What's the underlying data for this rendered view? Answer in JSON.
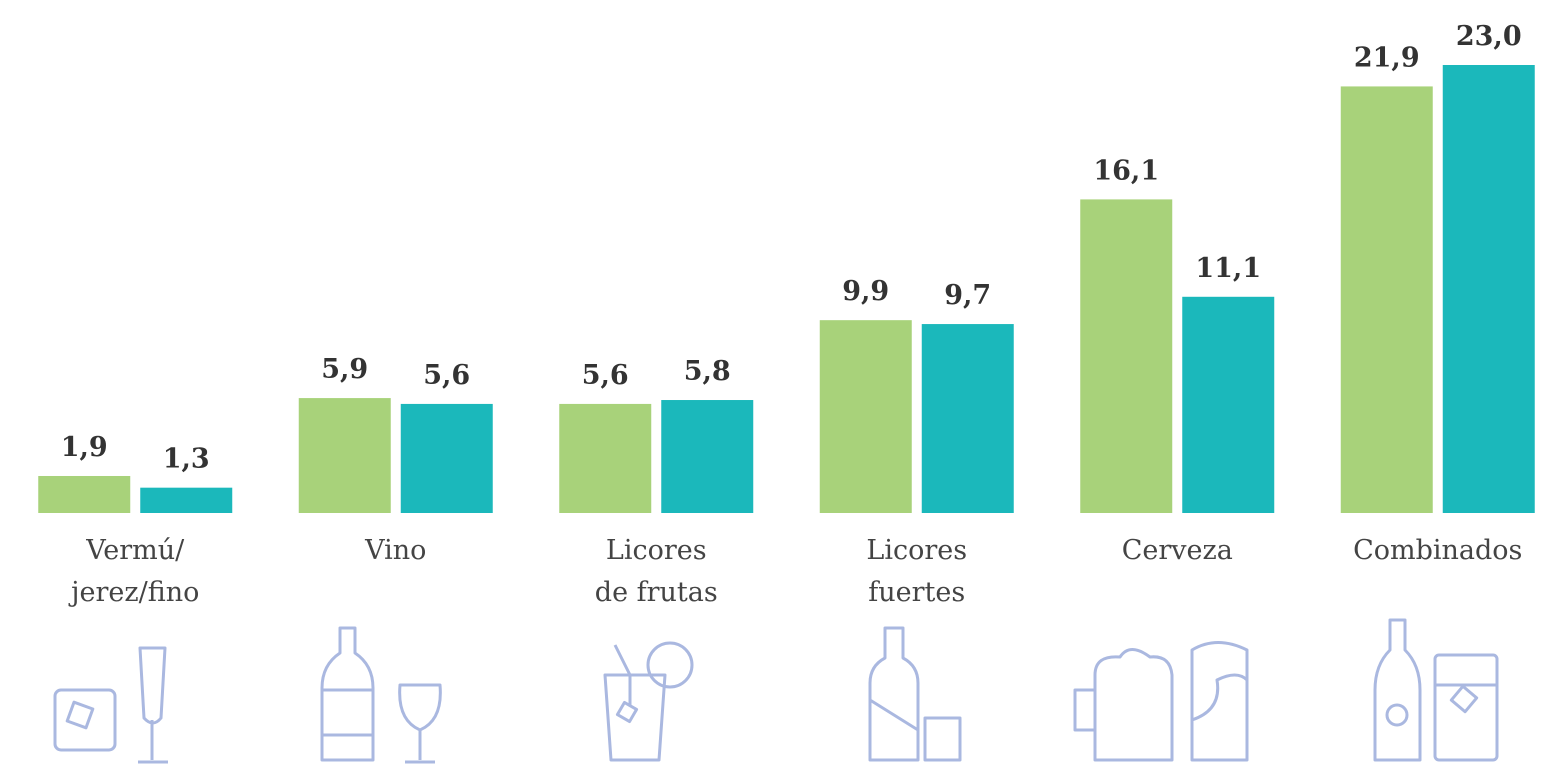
{
  "chart_data": {
    "type": "bar",
    "categories": [
      "Vermú/\njerez/fino",
      "Vino",
      "Licores\nde frutas",
      "Licores\nfuertes",
      "Cerveza",
      "Combinados"
    ],
    "series": [
      {
        "color": "#a8d27a",
        "values": [
          1.9,
          5.9,
          5.6,
          9.9,
          16.1,
          21.9
        ],
        "value_labels": [
          "1,9",
          "5,9",
          "5,6",
          "9,9",
          "16,1",
          "21,9"
        ]
      },
      {
        "color": "#1bb8bb",
        "values": [
          1.3,
          5.6,
          5.8,
          9.7,
          11.1,
          23.0
        ],
        "value_labels": [
          "1,3",
          "5,6",
          "5,8",
          "9,7",
          "11,1",
          "23,0"
        ]
      }
    ]
  }
}
